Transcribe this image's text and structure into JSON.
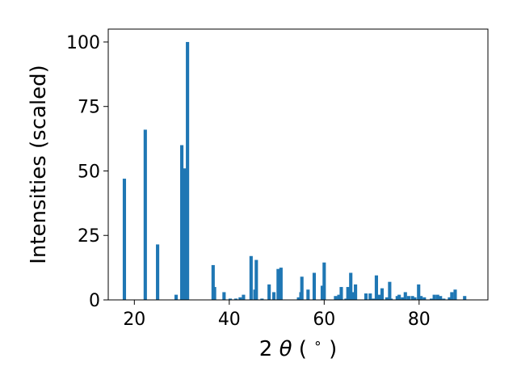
{
  "chart_data": {
    "type": "bar",
    "title": "",
    "xlabel_parts": [
      "2",
      "θ",
      " (",
      "∘",
      ")"
    ],
    "ylabel": "Intensities (scaled)",
    "xlim": [
      14.5,
      94.5
    ],
    "ylim": [
      0,
      105
    ],
    "x_ticks": [
      20,
      40,
      60,
      80
    ],
    "y_ticks": [
      0,
      25,
      50,
      75,
      100
    ],
    "grid": false,
    "bar_width_deg": 0.7,
    "colors": {
      "bar": "#1f77b4",
      "axis": "#000000"
    },
    "x": [
      17.9,
      22.3,
      24.9,
      28.8,
      30.0,
      30.6,
      31.2,
      36.6,
      36.9,
      38.9,
      40.2,
      41.4,
      42.3,
      43.0,
      44.6,
      45.4,
      45.7,
      46.9,
      48.4,
      49.4,
      50.3,
      50.9,
      54.6,
      55.1,
      55.3,
      56.6,
      57.9,
      59.6,
      60.0,
      62.4,
      63.1,
      63.6,
      64.6,
      65.0,
      65.6,
      66.1,
      66.6,
      68.8,
      69.7,
      70.4,
      71.0,
      71.7,
      72.2,
      73.2,
      73.8,
      74.1,
      75.4,
      75.8,
      76.5,
      77.1,
      77.8,
      78.6,
      79.1,
      79.9,
      80.4,
      81.1,
      82.6,
      83.2,
      83.9,
      84.5,
      85.2,
      86.4,
      86.9,
      87.6,
      89.6
    ],
    "values": [
      47,
      66,
      21.5,
      2,
      60,
      51,
      100,
      13.5,
      5,
      3,
      0.5,
      0.5,
      1,
      2,
      17,
      4,
      15.5,
      0.5,
      6,
      3,
      12,
      12.5,
      1,
      3,
      9,
      4,
      10.5,
      5.5,
      14.5,
      1.5,
      2,
      5,
      0.5,
      5,
      10.5,
      3,
      6,
      2.5,
      2.5,
      0.5,
      9.5,
      2,
      4.5,
      1,
      7,
      0.5,
      1.5,
      2,
      1,
      3,
      1.5,
      1.5,
      1,
      6,
      1.5,
      1,
      0.5,
      2,
      2,
      1.5,
      0.5,
      1,
      3,
      4,
      1.5
    ]
  }
}
